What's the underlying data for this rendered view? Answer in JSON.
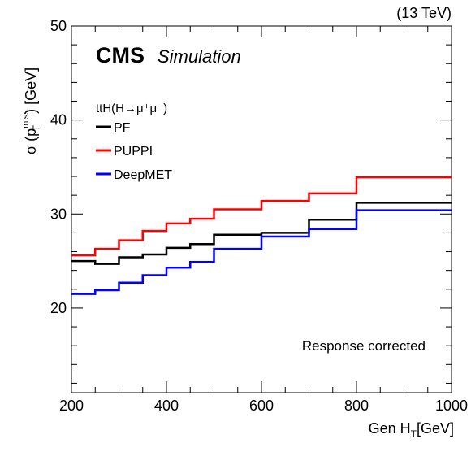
{
  "chart_data": {
    "type": "line",
    "top_right_label": "(13 TeV)",
    "experiment": "CMS",
    "experiment_sub": "Simulation",
    "xlabel": "Gen H",
    "xlabel_sub": "T",
    "xlabel_unit": "[GeV]",
    "ylabel_pre": "σ (p",
    "ylabel_sup": "miss",
    "ylabel_sub": "T",
    "ylabel_post": ") [GeV]",
    "xlim": [
      200,
      1000
    ],
    "ylim": [
      11,
      50
    ],
    "x_ticks": [
      200,
      400,
      600,
      800,
      1000
    ],
    "y_ticks": [
      20,
      30,
      40,
      50
    ],
    "x_minor_step": 50,
    "y_minor_step": 2,
    "legend_header": "ttH(H→μ⁺μ⁻)",
    "legend_position": "top-left",
    "annotation": "Response corrected",
    "bin_edges": [
      200,
      250,
      300,
      350,
      400,
      450,
      500,
      600,
      700,
      800,
      1000
    ],
    "series": [
      {
        "name": "PF",
        "color": "#000000",
        "values": [
          25.0,
          24.7,
          25.4,
          25.7,
          26.4,
          26.8,
          27.8,
          28.0,
          29.4,
          31.2
        ]
      },
      {
        "name": "PUPPI",
        "color": "#ff0000",
        "values": [
          25.6,
          26.3,
          27.2,
          28.2,
          29.0,
          29.5,
          30.5,
          31.4,
          32.2,
          33.9
        ]
      },
      {
        "name": "DeepMET",
        "color": "#0000ff",
        "values": [
          21.5,
          21.9,
          22.7,
          23.5,
          24.3,
          24.9,
          26.3,
          27.6,
          28.4,
          30.4
        ]
      }
    ]
  }
}
